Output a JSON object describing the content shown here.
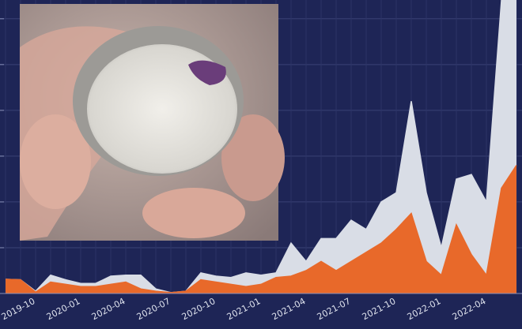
{
  "chart_data": {
    "type": "area",
    "categories": [
      null,
      null,
      "2019-10",
      null,
      null,
      "2020-01",
      null,
      null,
      "2020-04",
      null,
      null,
      "2020-07",
      null,
      null,
      "2020-10",
      null,
      null,
      "2021-01",
      null,
      null,
      "2021-04",
      null,
      null,
      "2021-07",
      null,
      null,
      "2021-10",
      null,
      null,
      "2022-01",
      null,
      null,
      "2022-04",
      null,
      null
    ],
    "series": [
      {
        "color": "#d9dde6",
        "values": [
          0.31,
          0.3,
          0.05,
          0.4,
          0.3,
          0.22,
          0.22,
          0.38,
          0.4,
          0.4,
          0.1,
          0.02,
          0.05,
          0.45,
          0.38,
          0.35,
          0.45,
          0.4,
          0.45,
          1.1,
          0.7,
          1.2,
          1.2,
          1.6,
          1.4,
          2.0,
          2.2,
          4.2,
          2.2,
          1.0,
          2.5,
          2.6,
          2.0,
          6.4,
          6.4
        ]
      },
      {
        "color": "#e8692a",
        "values": [
          0.31,
          0.3,
          0.03,
          0.25,
          0.2,
          0.15,
          0.15,
          0.2,
          0.25,
          0.1,
          0.05,
          0.02,
          0.05,
          0.3,
          0.25,
          0.2,
          0.15,
          0.2,
          0.35,
          0.38,
          0.5,
          0.7,
          0.5,
          0.7,
          0.9,
          1.1,
          1.4,
          1.75,
          0.7,
          0.4,
          1.5,
          0.85,
          0.4,
          2.3,
          2.8
        ]
      }
    ],
    "ylim": [
      0,
      6.41
    ],
    "yticks": [
      0,
      1,
      2,
      3,
      4,
      5,
      6
    ],
    "grid": true
  }
}
